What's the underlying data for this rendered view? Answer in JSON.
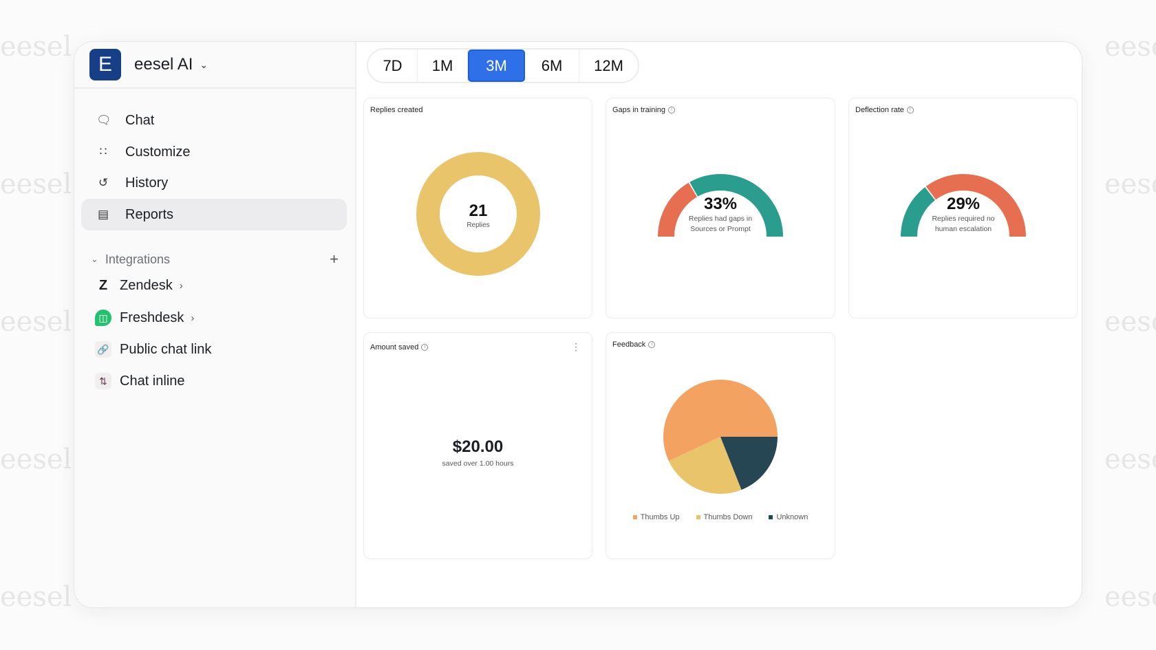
{
  "watermark": "eesel",
  "brand": {
    "initial": "E",
    "name": "eesel AI"
  },
  "nav": [
    {
      "label": "Chat",
      "icon": "chat-bubble-icon"
    },
    {
      "label": "Customize",
      "icon": "shapes-icon"
    },
    {
      "label": "History",
      "icon": "history-icon"
    },
    {
      "label": "Reports",
      "icon": "bar-chart-icon",
      "active": true
    }
  ],
  "integrations": {
    "label": "Integrations",
    "items": [
      {
        "label": "Zendesk",
        "icon": "zendesk-icon",
        "has_children": true
      },
      {
        "label": "Freshdesk",
        "icon": "freshdesk-icon",
        "has_children": true
      },
      {
        "label": "Public chat link",
        "icon": "link-icon"
      },
      {
        "label": "Chat inline",
        "icon": "chat-inline-icon"
      }
    ]
  },
  "range_tabs": {
    "options": [
      "7D",
      "1M",
      "3M",
      "6M",
      "12M"
    ],
    "selected": "3M"
  },
  "colors": {
    "accent": "#2f6fe8",
    "orange": "#E76F51",
    "teal": "#2A9D8F",
    "gold": "#E9C46A",
    "sandy": "#F4A261",
    "dark": "#264653"
  },
  "cards": {
    "replies": {
      "title": "Replies created",
      "value": "21",
      "label": "Replies"
    },
    "gaps": {
      "title": "Gaps in training",
      "value": "33%",
      "percent": 33,
      "line1": "Replies had gaps in",
      "line2": "Sources or Prompt"
    },
    "deflection": {
      "title": "Deflection rate",
      "value": "29%",
      "percent": 29,
      "line1": "Replies required no",
      "line2": "human escalation"
    },
    "amount": {
      "title": "Amount saved",
      "value": "$20.00",
      "subtitle": "saved over 1.00 hours"
    },
    "feedback": {
      "title": "Feedback"
    }
  },
  "chart_data": {
    "type": "pie",
    "series": [
      {
        "name": "Thumbs Up",
        "value": 57
      },
      {
        "name": "Thumbs Down",
        "value": 24
      },
      {
        "name": "Unknown",
        "value": 19
      }
    ],
    "legend": "bottom"
  }
}
